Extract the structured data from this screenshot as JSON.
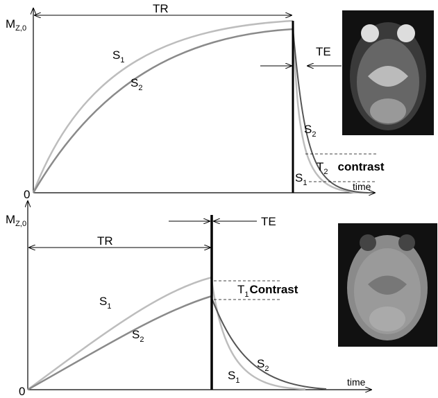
{
  "panels": [
    {
      "y_axis_label": {
        "main": "M",
        "sub": "Z,0"
      },
      "origin": "0",
      "tr": "TR",
      "te": "TE",
      "time": "time",
      "growth_labels": [
        {
          "main": "S",
          "sub": "1"
        },
        {
          "main": "S",
          "sub": "2"
        }
      ],
      "decay_labels": [
        {
          "main": "S",
          "sub": "1"
        },
        {
          "main": "S",
          "sub": "2"
        }
      ],
      "contrast": {
        "main": "T",
        "sub": "2",
        "text": "contrast"
      }
    },
    {
      "y_axis_label": {
        "main": "M",
        "sub": "Z,0"
      },
      "origin": "0",
      "tr": "TR",
      "te": "TE",
      "time": "time",
      "growth_labels": [
        {
          "main": "S",
          "sub": "1"
        },
        {
          "main": "S",
          "sub": "2"
        }
      ],
      "decay_labels": [
        {
          "main": "S",
          "sub": "1"
        },
        {
          "main": "S",
          "sub": "2"
        }
      ],
      "contrast": {
        "main": "T",
        "sub": "1",
        "text": "Contrast"
      }
    }
  ]
}
